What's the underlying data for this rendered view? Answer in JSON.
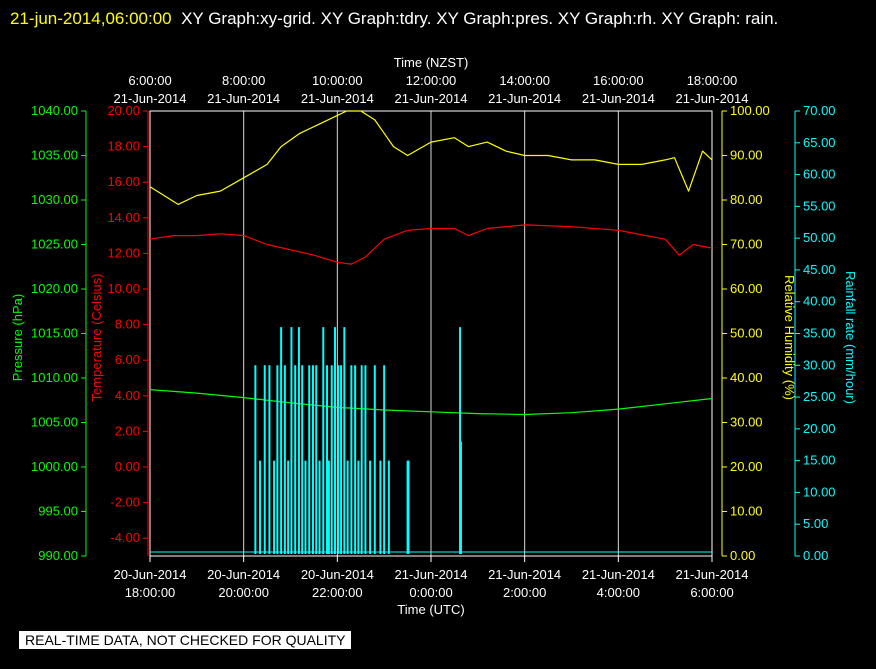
{
  "header": {
    "timestamp": "21-jun-2014,06:00:00",
    "titles": "XY Graph:xy-grid.  XY Graph:tdry.  XY Graph:pres.  XY Graph:rh.  XY Graph: rain."
  },
  "disclaimer": "REAL-TIME DATA, NOT CHECKED FOR QUALITY",
  "colors": {
    "pressure": "#00ff00",
    "temperature": "#ff0000",
    "humidity": "#ffff00",
    "rain": "#00ffff",
    "grid": "#ffffff"
  },
  "chart_data": {
    "type": "line",
    "top_axis": {
      "label": "Time (NZST)",
      "ticks": [
        {
          "time": "6:00:00",
          "date": "21-Jun-2014"
        },
        {
          "time": "8:00:00",
          "date": "21-Jun-2014"
        },
        {
          "time": "10:00:00",
          "date": "21-Jun-2014"
        },
        {
          "time": "12:00:00",
          "date": "21-Jun-2014"
        },
        {
          "time": "14:00:00",
          "date": "21-Jun-2014"
        },
        {
          "time": "16:00:00",
          "date": "21-Jun-2014"
        },
        {
          "time": "18:00:00",
          "date": "21-Jun-2014"
        }
      ]
    },
    "bottom_axis": {
      "label": "Time (UTC)",
      "ticks": [
        {
          "date": "20-Jun-2014",
          "time": "18:00:00"
        },
        {
          "date": "20-Jun-2014",
          "time": "20:00:00"
        },
        {
          "date": "20-Jun-2014",
          "time": "22:00:00"
        },
        {
          "date": "21-Jun-2014",
          "time": "0:00:00"
        },
        {
          "date": "21-Jun-2014",
          "time": "2:00:00"
        },
        {
          "date": "21-Jun-2014",
          "time": "4:00:00"
        },
        {
          "date": "21-Jun-2014",
          "time": "6:00:00"
        }
      ]
    },
    "x_unit": "hours (NZST)",
    "xlim": [
      6,
      18
    ],
    "grid": true,
    "axes": {
      "pressure": {
        "label": "Pressure (hPa)",
        "ylim": [
          990,
          1040
        ],
        "ticks": [
          "990.00",
          "995.00",
          "1000.00",
          "1005.00",
          "1010.00",
          "1015.00",
          "1020.00",
          "1025.00",
          "1030.00",
          "1035.00",
          "1040.00"
        ]
      },
      "temperature": {
        "label": "Temperature (Celsius)",
        "ylim": [
          -5,
          20
        ],
        "ticks": [
          "-4.00",
          "-2.00",
          "0.00",
          "2.00",
          "4.00",
          "6.00",
          "8.00",
          "10.00",
          "12.00",
          "14.00",
          "16.00",
          "18.00",
          "20.00"
        ]
      },
      "humidity": {
        "label": "Relative Humidity (%)",
        "ylim": [
          0,
          100
        ],
        "ticks": [
          "0.00",
          "10.00",
          "20.00",
          "30.00",
          "40.00",
          "50.00",
          "60.00",
          "70.00",
          "80.00",
          "90.00",
          "100.00"
        ]
      },
      "rain": {
        "label": "Rainfall rate (mm/hour)",
        "ylim": [
          0,
          70
        ],
        "ticks": [
          "0.00",
          "5.00",
          "10.00",
          "15.00",
          "20.00",
          "25.00",
          "30.00",
          "35.00",
          "40.00",
          "45.00",
          "50.00",
          "55.00",
          "60.00",
          "65.00",
          "70.00"
        ]
      }
    },
    "series": [
      {
        "key": "humidity",
        "axis": "humidity",
        "x": [
          6.0,
          6.3,
          6.6,
          7.0,
          7.5,
          8.0,
          8.5,
          8.8,
          9.2,
          9.6,
          10.0,
          10.2,
          10.5,
          10.8,
          11.2,
          11.5,
          12.0,
          12.5,
          12.8,
          13.2,
          13.6,
          14.0,
          14.5,
          15.0,
          15.5,
          16.0,
          16.5,
          17.0,
          17.2,
          17.5,
          17.8,
          18.0
        ],
        "y": [
          83,
          81,
          79,
          81,
          82,
          85,
          88,
          92,
          95,
          97,
          99,
          100,
          100,
          98,
          92,
          90,
          93,
          94,
          92,
          93,
          91,
          90,
          90,
          89,
          89,
          88,
          88,
          89,
          89.5,
          82,
          91,
          89
        ]
      },
      {
        "key": "temperature",
        "axis": "temperature",
        "x": [
          6.0,
          6.5,
          7.0,
          7.5,
          8.0,
          8.5,
          9.0,
          9.5,
          10.0,
          10.3,
          10.6,
          11.0,
          11.5,
          12.0,
          12.5,
          12.8,
          13.2,
          14.0,
          15.0,
          16.0,
          17.0,
          17.3,
          17.6,
          18.0
        ],
        "y": [
          12.8,
          13.0,
          13.0,
          13.1,
          13.0,
          12.5,
          12.2,
          11.9,
          11.5,
          11.4,
          11.8,
          12.8,
          13.3,
          13.4,
          13.4,
          13.0,
          13.4,
          13.6,
          13.5,
          13.3,
          12.8,
          11.9,
          12.5,
          12.3
        ]
      },
      {
        "key": "pressure",
        "axis": "pressure",
        "x": [
          6.0,
          7.0,
          8.0,
          9.0,
          10.0,
          11.0,
          12.0,
          13.0,
          14.0,
          15.0,
          16.0,
          17.0,
          18.0
        ],
        "y": [
          1008.7,
          1008.3,
          1007.8,
          1007.2,
          1006.7,
          1006.4,
          1006.2,
          1006.0,
          1005.9,
          1006.1,
          1006.5,
          1007.1,
          1007.7
        ]
      },
      {
        "key": "rain",
        "axis": "rain",
        "type": "bar",
        "x": [
          8.25,
          8.35,
          8.45,
          8.55,
          8.65,
          8.72,
          8.8,
          8.88,
          8.95,
          9.02,
          9.1,
          9.18,
          9.25,
          9.32,
          9.4,
          9.48,
          9.55,
          9.62,
          9.7,
          9.78,
          9.82,
          9.88,
          9.95,
          10.02,
          10.08,
          10.15,
          10.22,
          10.3,
          10.38,
          10.45,
          10.52,
          10.6,
          10.7,
          10.8,
          10.92,
          11.0,
          11.1,
          11.5,
          11.52,
          12.62,
          12.64
        ],
        "y": [
          30,
          15,
          30,
          30,
          15,
          30,
          36,
          30,
          15,
          36,
          30,
          36,
          30,
          15,
          30,
          30,
          30,
          15,
          36,
          30,
          15,
          30,
          36,
          30,
          30,
          36,
          15,
          30,
          30,
          15,
          30,
          30,
          15,
          30,
          15,
          30,
          15,
          15,
          15,
          36,
          18
        ]
      }
    ]
  }
}
